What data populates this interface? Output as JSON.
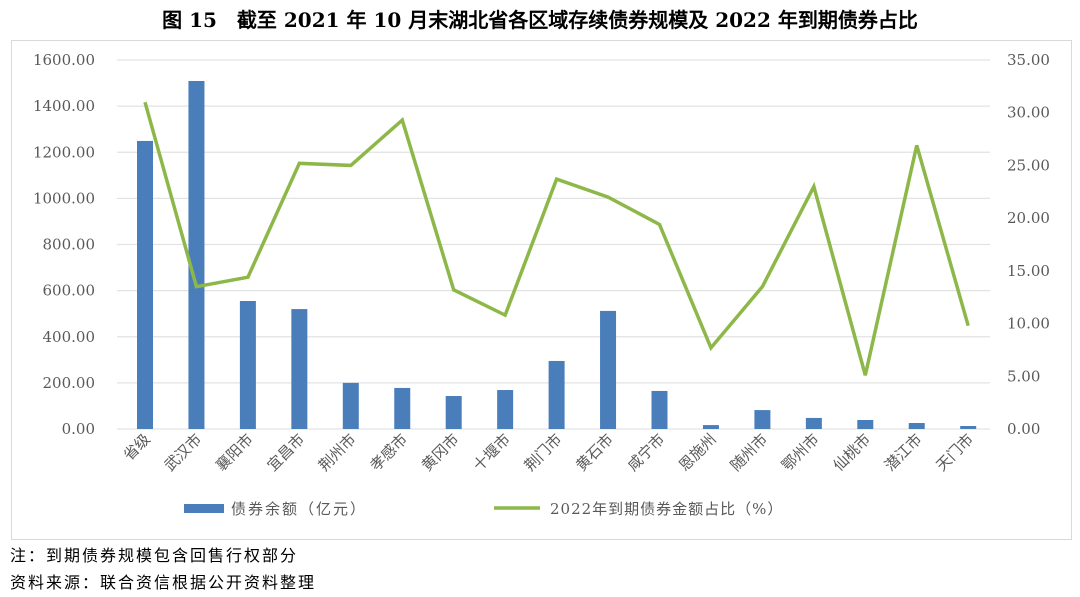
{
  "title": "图 15　截至 2021 年 10 月末湖北省各区域存续债券规模及 2022 年到期债券占比",
  "notes": [
    "注：到期债券规模包含回售行权部分",
    "资料来源：联合资信根据公开资料整理"
  ],
  "chart_data": {
    "type": "bar+line",
    "categories": [
      "省级",
      "武汉市",
      "襄阳市",
      "宜昌市",
      "荆州市",
      "孝感市",
      "黄冈市",
      "十堰市",
      "荆门市",
      "黄石市",
      "咸宁市",
      "恩施州",
      "随州市",
      "鄂州市",
      "仙桃市",
      "潜江市",
      "天门市"
    ],
    "series": [
      {
        "name": "债券余额（亿元）",
        "type": "bar",
        "axis": "left",
        "color": "#4a7ebb",
        "values": [
          1249,
          1509,
          555,
          520,
          200,
          178,
          143,
          169,
          295,
          512,
          165,
          17,
          82,
          48,
          39,
          26,
          13
        ]
      },
      {
        "name": "2022年到期债券金额占比（%）",
        "type": "line",
        "axis": "right",
        "color": "#8db849",
        "values": [
          31.0,
          13.5,
          14.4,
          25.2,
          25.0,
          29.3,
          13.2,
          10.8,
          23.7,
          22.0,
          19.4,
          7.7,
          13.5,
          23.0,
          5.1,
          26.9,
          9.8
        ]
      }
    ],
    "left_axis": {
      "ylim": [
        0,
        1600
      ],
      "ticks": [
        "0.00",
        "200.00",
        "400.00",
        "600.00",
        "800.00",
        "1000.00",
        "1200.00",
        "1400.00",
        "1600.00"
      ]
    },
    "right_axis": {
      "ylim": [
        0,
        35
      ],
      "ticks": [
        "0.00",
        "5.00",
        "10.00",
        "15.00",
        "20.00",
        "25.00",
        "30.00",
        "35.00"
      ]
    },
    "grid": true,
    "legend": "bottom"
  }
}
